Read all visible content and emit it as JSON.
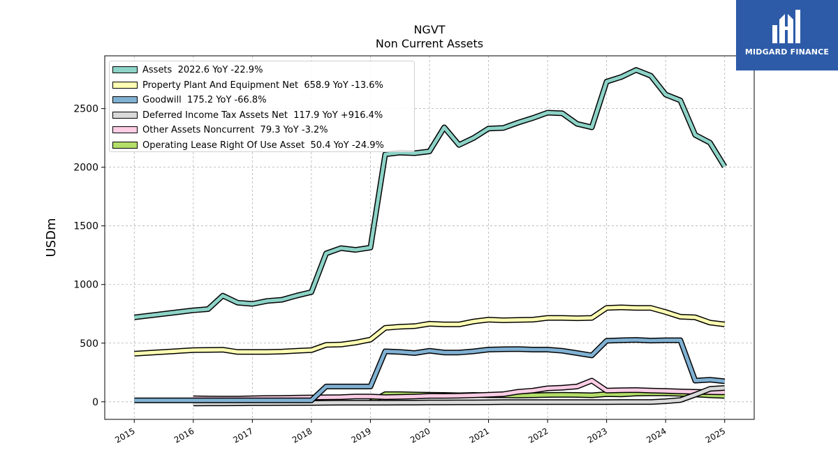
{
  "title": "NGVT",
  "subtitle": "Non Current  Assets",
  "brand": {
    "name": "MIDGARD FINANCE",
    "color": "#2d5ba8"
  },
  "chart_data": {
    "type": "line",
    "ylabel": "USDm",
    "ylim": [
      -150,
      2950
    ],
    "yticks": [
      0,
      500,
      1000,
      1500,
      2000,
      2500
    ],
    "xlim": [
      2014.5,
      2025.5
    ],
    "xticks": [
      "2015",
      "2016",
      "2017",
      "2018",
      "2019",
      "2020",
      "2021",
      "2022",
      "2023",
      "2024",
      "2025"
    ],
    "grid": true,
    "legend_position": "top-left",
    "series": [
      {
        "name": "Assets",
        "legend": "Assets  2022.6 YoY -22.9%",
        "color": "#8dd3c7",
        "x": [
          2015.0,
          2016.0,
          2016.25,
          2016.5,
          2016.75,
          2017.0,
          2017.25,
          2017.5,
          2017.75,
          2018.0,
          2018.25,
          2018.5,
          2018.75,
          2019.0,
          2019.25,
          2019.5,
          2019.75,
          2020.0,
          2020.25,
          2020.5,
          2020.75,
          2021.0,
          2021.25,
          2021.5,
          2021.75,
          2022.0,
          2022.25,
          2022.5,
          2022.75,
          2023.0,
          2023.25,
          2023.5,
          2023.75,
          2024.0,
          2024.25,
          2024.5,
          2024.75,
          2025.0
        ],
        "y": [
          720,
          780,
          790,
          905,
          845,
          835,
          860,
          870,
          905,
          935,
          1265,
          1310,
          1295,
          1315,
          2110,
          2125,
          2120,
          2135,
          2340,
          2190,
          2250,
          2330,
          2335,
          2380,
          2420,
          2465,
          2460,
          2370,
          2340,
          2730,
          2770,
          2830,
          2780,
          2620,
          2570,
          2275,
          2210,
          2005
        ]
      },
      {
        "name": "Property Plant And Equipment Net",
        "legend": "Property Plant And Equipment Net  658.9 YoY -13.6%",
        "color": "#ffffb3",
        "x": [
          2015.0,
          2016.0,
          2016.25,
          2016.5,
          2016.75,
          2017.0,
          2017.25,
          2017.5,
          2017.75,
          2018.0,
          2018.25,
          2018.5,
          2018.75,
          2019.0,
          2019.25,
          2019.5,
          2019.75,
          2020.0,
          2020.25,
          2020.5,
          2020.75,
          2021.0,
          2021.25,
          2021.5,
          2021.75,
          2022.0,
          2022.25,
          2022.5,
          2022.75,
          2023.0,
          2023.25,
          2023.5,
          2023.75,
          2024.0,
          2024.25,
          2024.5,
          2024.75,
          2025.0
        ],
        "y": [
          410,
          440,
          442,
          444,
          425,
          425,
          425,
          428,
          435,
          440,
          485,
          488,
          505,
          530,
          630,
          640,
          645,
          665,
          660,
          660,
          685,
          700,
          695,
          698,
          700,
          715,
          715,
          712,
          715,
          800,
          805,
          800,
          800,
          765,
          725,
          720,
          675,
          660
        ]
      },
      {
        "name": "Goodwill",
        "legend": "Goodwill  175.2 YoY -66.8%",
        "color": "#80b1d3",
        "x": [
          2015.0,
          2016.0,
          2016.25,
          2016.5,
          2016.75,
          2017.0,
          2017.25,
          2017.5,
          2017.75,
          2018.0,
          2018.25,
          2018.5,
          2018.75,
          2019.0,
          2019.25,
          2019.5,
          2019.75,
          2020.0,
          2020.25,
          2020.5,
          2020.75,
          2021.0,
          2021.25,
          2021.5,
          2021.75,
          2022.0,
          2022.25,
          2022.5,
          2022.75,
          2023.0,
          2023.25,
          2023.5,
          2023.75,
          2024.0,
          2024.25,
          2024.5,
          2024.75,
          2025.0
        ],
        "y": [
          12,
          12,
          12,
          12,
          12,
          12,
          12,
          12,
          12,
          12,
          130,
          130,
          130,
          130,
          430,
          425,
          415,
          435,
          420,
          420,
          430,
          445,
          448,
          450,
          445,
          445,
          435,
          415,
          395,
          520,
          525,
          528,
          522,
          525,
          525,
          180,
          188,
          175
        ]
      },
      {
        "name": "Deferred Income Tax Assets Net",
        "legend": "Deferred Income Tax Assets Net  117.9 YoY +916.4%",
        "color": "#d9d9d9",
        "x": [
          2016.0,
          2016.25,
          2016.5,
          2016.75,
          2017.0,
          2017.25,
          2017.5,
          2017.75,
          2018.0,
          2018.25,
          2018.5,
          2018.75,
          2019.0,
          2019.25,
          2019.5,
          2019.75,
          2020.0,
          2020.25,
          2020.5,
          2020.75,
          2021.0,
          2021.25,
          2021.5,
          2021.75,
          2022.0,
          2022.25,
          2022.5,
          2022.75,
          2023.0,
          2023.25,
          2023.5,
          2023.75,
          2024.0,
          2024.25,
          2024.5,
          2024.75,
          2025.0
        ],
        "y": [
          -15,
          -14,
          -14,
          -13,
          -12,
          -12,
          -11,
          -10,
          -10,
          -9,
          -8,
          -8,
          -8,
          -8,
          -7,
          -7,
          -6,
          -6,
          -5,
          -5,
          -4,
          -3,
          -3,
          -3,
          -3,
          -3,
          -3,
          -3,
          -3,
          -2,
          -2,
          -2,
          5,
          15,
          60,
          110,
          118
        ]
      },
      {
        "name": "Other Assets Noncurrent",
        "legend": "Other Assets Noncurrent  79.3 YoY -3.2%",
        "color": "#fccde5",
        "x": [
          2016.0,
          2016.25,
          2016.5,
          2016.75,
          2017.0,
          2017.25,
          2017.5,
          2017.75,
          2018.0,
          2018.25,
          2018.5,
          2018.75,
          2019.0,
          2019.25,
          2019.5,
          2019.75,
          2020.0,
          2020.25,
          2020.5,
          2020.75,
          2021.0,
          2021.25,
          2021.5,
          2021.75,
          2022.0,
          2022.25,
          2022.5,
          2022.75,
          2023.0,
          2023.25,
          2023.5,
          2023.75,
          2024.0,
          2024.25,
          2024.5,
          2024.75,
          2025.0
        ],
        "y": [
          30,
          28,
          27,
          27,
          30,
          32,
          33,
          35,
          37,
          38,
          40,
          45,
          45,
          40,
          42,
          45,
          50,
          50,
          52,
          55,
          60,
          65,
          85,
          95,
          115,
          120,
          130,
          180,
          95,
          98,
          100,
          95,
          92,
          88,
          85,
          82,
          80
        ]
      },
      {
        "name": "Operating Lease Right Of Use Asset",
        "legend": "Operating Lease Right Of Use Asset  50.4 YoY -24.9%",
        "color": "#b3de69",
        "x": [
          2019.0,
          2019.25,
          2019.5,
          2019.75,
          2020.0,
          2020.25,
          2020.5,
          2020.75,
          2021.0,
          2021.25,
          2021.5,
          2021.75,
          2022.0,
          2022.25,
          2022.5,
          2022.75,
          2023.0,
          2023.25,
          2023.5,
          2023.75,
          2024.0,
          2024.25,
          2024.5,
          2024.75,
          2025.0
        ],
        "y": [
          -5,
          65,
          65,
          62,
          60,
          58,
          55,
          58,
          55,
          55,
          53,
          55,
          58,
          60,
          58,
          55,
          65,
          63,
          70,
          72,
          72,
          68,
          62,
          55,
          50
        ]
      }
    ]
  }
}
